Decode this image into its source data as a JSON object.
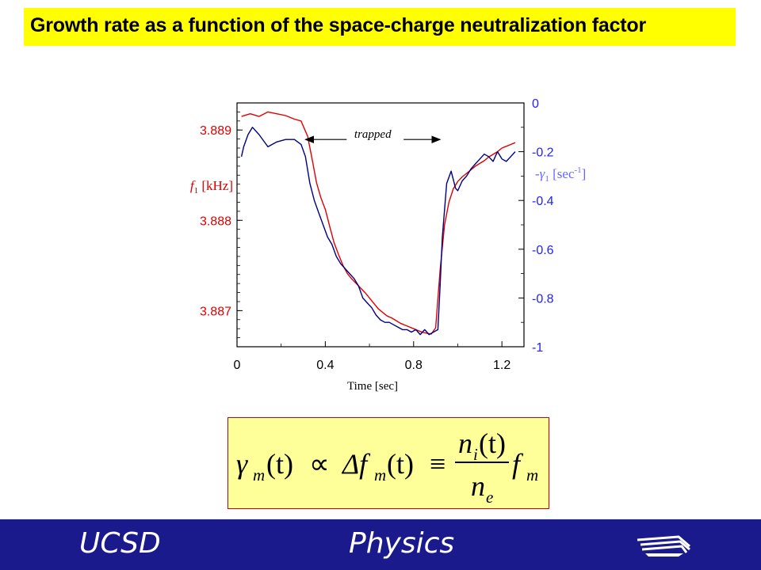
{
  "slide": {
    "title": "Growth rate as a function of the space-charge neutralization factor",
    "footer_left": "UCSD",
    "footer_right": "Physics",
    "colors": {
      "title_bg": "#ffff00",
      "footer_bg": "#1a1a8c",
      "formula_bg": "#ffff99",
      "formula_border": "#cc0000"
    }
  },
  "chart_data": {
    "type": "line",
    "xlabel": "Time [sec]",
    "ylabel_left": {
      "prefix": "f",
      "sub": "1",
      "unit": " [kHz]"
    },
    "ylabel_right": {
      "prefix": "-",
      "symbol": "γ",
      "sub": "1",
      "unit": " [sec",
      "sup": "-1",
      "close": "]"
    },
    "x_ticks": [
      "0",
      "0.4",
      "0.8",
      "1.2"
    ],
    "x_tick_values": [
      0,
      0.4,
      0.8,
      1.2
    ],
    "xlim": [
      0,
      1.3
    ],
    "left_ticks": [
      "3.889",
      "3.888",
      "3.887"
    ],
    "left_tick_values": [
      3.889,
      3.888,
      3.887
    ],
    "ylim_left": [
      3.8866,
      3.8893
    ],
    "right_ticks": [
      "0",
      "-0.2",
      "-0.4",
      "-0.6",
      "-0.8",
      "-1"
    ],
    "right_tick_values": [
      0,
      -0.2,
      -0.4,
      -0.6,
      -0.8,
      -1
    ],
    "ylim_right": [
      -1,
      0
    ],
    "annotation": {
      "text": "trapped",
      "x_start": 0.31,
      "x_end": 0.92,
      "y_right": -0.15
    },
    "series": [
      {
        "axis": "left",
        "color": "#e00000",
        "x": [
          0.02,
          0.06,
          0.1,
          0.14,
          0.18,
          0.22,
          0.26,
          0.29,
          0.32,
          0.34,
          0.36,
          0.38,
          0.4,
          0.42,
          0.44,
          0.46,
          0.48,
          0.5,
          0.52,
          0.54,
          0.56,
          0.58,
          0.6,
          0.62,
          0.64,
          0.66,
          0.68,
          0.7,
          0.72,
          0.74,
          0.76,
          0.78,
          0.8,
          0.82,
          0.84,
          0.86,
          0.88,
          0.9,
          0.92,
          0.94,
          0.96,
          0.98,
          1.0,
          1.02,
          1.04,
          1.06,
          1.08,
          1.1,
          1.12,
          1.14,
          1.16,
          1.18,
          1.2,
          1.22,
          1.24,
          1.26
        ],
        "y": [
          3.88915,
          3.88918,
          3.88915,
          3.8892,
          3.88918,
          3.88916,
          3.88912,
          3.8891,
          3.88893,
          3.88868,
          3.88842,
          3.88825,
          3.88812,
          3.88793,
          3.88775,
          3.88762,
          3.8875,
          3.88741,
          3.88735,
          3.8873,
          3.88725,
          3.8872,
          3.88714,
          3.88708,
          3.88702,
          3.88698,
          3.88694,
          3.88692,
          3.88689,
          3.88686,
          3.88684,
          3.88682,
          3.8868,
          3.88678,
          3.88676,
          3.88675,
          3.88674,
          3.88681,
          3.88745,
          3.88795,
          3.8882,
          3.88835,
          3.88843,
          3.88848,
          3.88852,
          3.88856,
          3.8886,
          3.88863,
          3.88866,
          3.8887,
          3.88873,
          3.88876,
          3.8888,
          3.88882,
          3.88884,
          3.88886
        ]
      },
      {
        "axis": "right",
        "color": "#000080",
        "x": [
          0.02,
          0.03,
          0.05,
          0.07,
          0.1,
          0.14,
          0.18,
          0.22,
          0.26,
          0.29,
          0.31,
          0.33,
          0.35,
          0.37,
          0.39,
          0.41,
          0.43,
          0.45,
          0.47,
          0.49,
          0.51,
          0.53,
          0.55,
          0.57,
          0.59,
          0.61,
          0.63,
          0.65,
          0.67,
          0.69,
          0.71,
          0.73,
          0.75,
          0.77,
          0.79,
          0.81,
          0.83,
          0.85,
          0.87,
          0.89,
          0.91,
          0.92,
          0.93,
          0.95,
          0.97,
          0.99,
          1.0,
          1.02,
          1.04,
          1.06,
          1.08,
          1.1,
          1.12,
          1.14,
          1.16,
          1.18,
          1.2,
          1.22,
          1.24,
          1.26
        ],
        "y": [
          -0.22,
          -0.18,
          -0.13,
          -0.1,
          -0.13,
          -0.18,
          -0.16,
          -0.15,
          -0.15,
          -0.17,
          -0.22,
          -0.33,
          -0.4,
          -0.45,
          -0.5,
          -0.55,
          -0.58,
          -0.63,
          -0.66,
          -0.68,
          -0.7,
          -0.72,
          -0.75,
          -0.8,
          -0.82,
          -0.84,
          -0.87,
          -0.89,
          -0.9,
          -0.9,
          -0.91,
          -0.92,
          -0.93,
          -0.93,
          -0.94,
          -0.93,
          -0.95,
          -0.93,
          -0.95,
          -0.94,
          -0.93,
          -0.75,
          -0.55,
          -0.33,
          -0.28,
          -0.35,
          -0.36,
          -0.32,
          -0.3,
          -0.27,
          -0.25,
          -0.23,
          -0.21,
          -0.22,
          -0.24,
          -0.2,
          -0.23,
          -0.24,
          -0.22,
          -0.2
        ]
      }
    ],
    "colors": {
      "left_axis": "#e00000",
      "right_axis": "#1f1fff",
      "label_right": "#6666ff"
    }
  },
  "formula": {
    "gamma": "γ",
    "sub_m": "m",
    "t": "(t)",
    "propto": "∝",
    "delta_f": "Δf",
    "equiv": "≡",
    "n": "n",
    "sub_i": "i",
    "sub_e": "e",
    "f": "f"
  }
}
